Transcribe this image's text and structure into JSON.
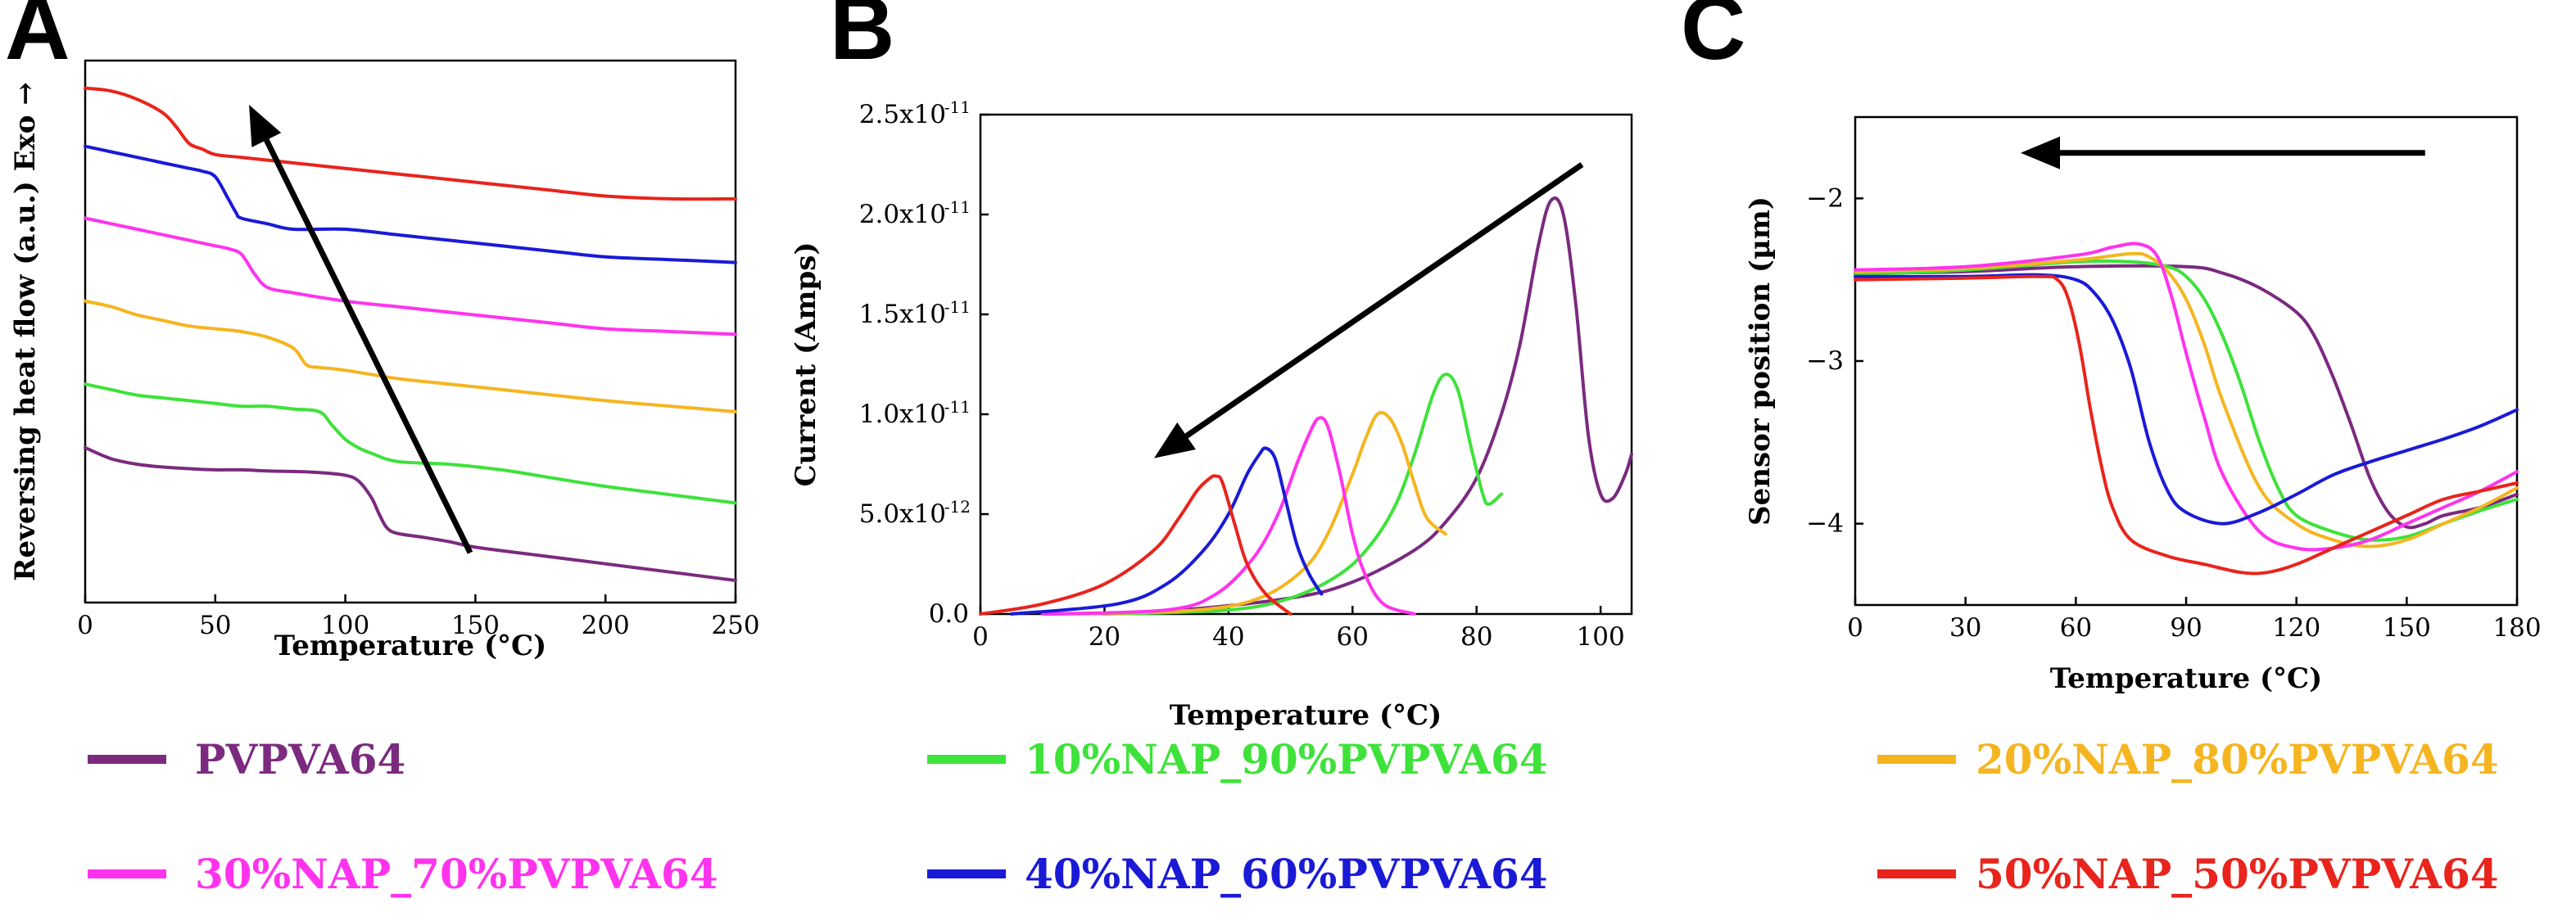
{
  "colors": {
    "purple": "#7b2a7f",
    "green": "#3ee23a",
    "orange": "#f5b520",
    "magenta": "#ff33ee",
    "blue": "#1a1ad6",
    "red": "#e8241c"
  },
  "legend": [
    {
      "label": "PVPVA64",
      "color": "#7b2a7f"
    },
    {
      "label": "10%NAP_90%PVPVA64",
      "color": "#3ee23a"
    },
    {
      "label": "20%NAP_80%PVPVA64",
      "color": "#f5b520"
    },
    {
      "label": "30%NAP_70%PVPVA64",
      "color": "#ff33ee"
    },
    {
      "label": "40%NAP_60%PVPVA64",
      "color": "#1a1ad6"
    },
    {
      "label": "50%NAP_50%PVPVA64",
      "color": "#e8241c"
    }
  ],
  "chart_data": [
    {
      "panel": "A",
      "type": "line",
      "xlabel": "Temperature (°C)",
      "ylabel": "Reversing heat flow (a.u.) Exo →",
      "xlim": [
        0,
        250
      ],
      "ylim": [
        0,
        9.8
      ],
      "xticks": [
        0,
        50,
        100,
        150,
        200,
        250
      ],
      "yticks": [],
      "annotation_arrow": {
        "from": [
          148,
          0.9
        ],
        "to": [
          63,
          9.0
        ]
      },
      "series": [
        {
          "name": "PVPVA64",
          "color": "#7b2a7f",
          "x": [
            0,
            10,
            20,
            30,
            40,
            50,
            60,
            70,
            80,
            90,
            100,
            105,
            110,
            113,
            116,
            120,
            130,
            140,
            150,
            175,
            200,
            225,
            250
          ],
          "y": [
            2.8,
            2.6,
            2.5,
            2.45,
            2.42,
            2.4,
            2.4,
            2.38,
            2.37,
            2.35,
            2.3,
            2.2,
            1.9,
            1.6,
            1.35,
            1.25,
            1.18,
            1.1,
            1.0,
            0.85,
            0.7,
            0.55,
            0.4
          ]
        },
        {
          "name": "10%NAP_90%PVPVA64",
          "color": "#3ee23a",
          "x": [
            0,
            10,
            20,
            30,
            40,
            50,
            60,
            70,
            80,
            90,
            95,
            100,
            105,
            110,
            120,
            140,
            160,
            180,
            200,
            225,
            250
          ],
          "y": [
            3.95,
            3.85,
            3.75,
            3.7,
            3.65,
            3.6,
            3.55,
            3.55,
            3.5,
            3.45,
            3.2,
            2.95,
            2.8,
            2.7,
            2.55,
            2.5,
            2.4,
            2.25,
            2.1,
            1.95,
            1.8
          ]
        },
        {
          "name": "20%NAP_80%PVPVA64",
          "color": "#f5b520",
          "x": [
            0,
            10,
            20,
            30,
            40,
            50,
            60,
            70,
            80,
            85,
            90,
            100,
            120,
            140,
            160,
            180,
            200,
            225,
            250
          ],
          "y": [
            5.45,
            5.35,
            5.2,
            5.1,
            5.0,
            4.95,
            4.9,
            4.8,
            4.6,
            4.3,
            4.25,
            4.2,
            4.05,
            3.95,
            3.85,
            3.75,
            3.65,
            3.55,
            3.45
          ]
        },
        {
          "name": "30%NAP_70%PVPVA64",
          "color": "#ff33ee",
          "x": [
            0,
            10,
            20,
            30,
            40,
            50,
            55,
            60,
            65,
            70,
            80,
            100,
            120,
            140,
            160,
            180,
            200,
            225,
            250
          ],
          "y": [
            6.95,
            6.85,
            6.75,
            6.65,
            6.55,
            6.45,
            6.4,
            6.3,
            5.95,
            5.7,
            5.6,
            5.45,
            5.35,
            5.25,
            5.15,
            5.05,
            4.95,
            4.9,
            4.85
          ]
        },
        {
          "name": "40%NAP_60%PVPVA64",
          "color": "#1a1ad6",
          "x": [
            0,
            10,
            20,
            30,
            40,
            45,
            50,
            55,
            58,
            60,
            70,
            80,
            100,
            120,
            140,
            160,
            180,
            200,
            225,
            250
          ],
          "y": [
            8.25,
            8.15,
            8.05,
            7.95,
            7.85,
            7.8,
            7.7,
            7.3,
            7.05,
            6.95,
            6.85,
            6.75,
            6.75,
            6.65,
            6.55,
            6.45,
            6.35,
            6.25,
            6.2,
            6.15
          ]
        },
        {
          "name": "50%NAP_50%PVPVA64",
          "color": "#e8241c",
          "x": [
            0,
            10,
            20,
            30,
            35,
            40,
            45,
            50,
            60,
            80,
            100,
            120,
            140,
            160,
            180,
            200,
            225,
            250
          ],
          "y": [
            9.3,
            9.25,
            9.1,
            8.85,
            8.6,
            8.3,
            8.2,
            8.1,
            8.05,
            7.95,
            7.85,
            7.75,
            7.65,
            7.55,
            7.45,
            7.35,
            7.3,
            7.3
          ]
        }
      ]
    },
    {
      "panel": "B",
      "type": "line",
      "xlabel": "Temperature (°C)",
      "ylabel": "Current (Amps)",
      "xlim": [
        0,
        105
      ],
      "ylim": [
        0,
        2.5e-11
      ],
      "xticks": [
        0,
        20,
        40,
        60,
        80,
        100
      ],
      "yticks": [
        0.0,
        5e-12,
        1e-11,
        1.5e-11,
        2e-11,
        2.5e-11
      ],
      "ytick_labels": [
        {
          "text": "0.0"
        },
        {
          "text": "5.0x10",
          "exp": "-12"
        },
        {
          "text": "1.0x10",
          "exp": "-11"
        },
        {
          "text": "1.5x10",
          "exp": "-11"
        },
        {
          "text": "2.0x10",
          "exp": "-11"
        },
        {
          "text": "2.5x10",
          "exp": "-11"
        }
      ],
      "annotation_arrow": {
        "from": [
          97,
          2.25e-11
        ],
        "to": [
          28,
          7.8e-12
        ]
      },
      "series": [
        {
          "name": "PVPVA64",
          "color": "#7b2a7f",
          "x": [
            10,
            30,
            50,
            60,
            70,
            75,
            80,
            84,
            87,
            90,
            92,
            94,
            96,
            98,
            100,
            102,
            104,
            105
          ],
          "y": [
            0,
            1.5e-13,
            8e-13,
            1.6e-12,
            3.2e-12,
            4.6e-12,
            6.8e-12,
            1e-11,
            1.35e-11,
            1.85e-11,
            2.07e-11,
            2e-11,
            1.55e-11,
            9e-12,
            6e-12,
            5.8e-12,
            7e-12,
            8e-12
          ]
        },
        {
          "name": "10%NAP_90%PVPVA64",
          "color": "#3ee23a",
          "x": [
            20,
            40,
            50,
            58,
            63,
            67,
            70,
            73,
            75,
            77,
            79,
            81,
            82,
            84
          ],
          "y": [
            0,
            2e-13,
            8e-13,
            2e-12,
            3.5e-12,
            5.5e-12,
            8e-12,
            1.1e-11,
            1.2e-11,
            1.12e-11,
            8.5e-12,
            6e-12,
            5.5e-12,
            6e-12
          ]
        },
        {
          "name": "20%NAP_80%PVPVA64",
          "color": "#f5b520",
          "x": [
            15,
            35,
            45,
            52,
            56,
            60,
            62,
            64,
            66,
            68,
            70,
            72,
            75
          ],
          "y": [
            0,
            2e-13,
            8e-13,
            2.2e-12,
            4e-12,
            7e-12,
            8.7e-12,
            1e-11,
            9.8e-12,
            8.5e-12,
            6.5e-12,
            4.8e-12,
            4e-12
          ]
        },
        {
          "name": "30%NAP_70%PVPVA64",
          "color": "#ff33ee",
          "x": [
            10,
            30,
            38,
            44,
            48,
            51,
            53,
            54.5,
            56,
            58,
            60,
            62,
            65,
            70
          ],
          "y": [
            0,
            2e-13,
            1e-12,
            2.8e-12,
            5e-12,
            7.5e-12,
            9e-12,
            9.8e-12,
            9.4e-12,
            7e-12,
            4e-12,
            2e-12,
            5e-13,
            0
          ]
        },
        {
          "name": "40%NAP_60%PVPVA64",
          "color": "#1a1ad6",
          "x": [
            5,
            22,
            30,
            36,
            40,
            43,
            45,
            46,
            47.5,
            49,
            51,
            53,
            55
          ],
          "y": [
            0,
            5e-13,
            1.5e-12,
            3.2e-12,
            5e-12,
            7e-12,
            8e-12,
            8.3e-12,
            7.8e-12,
            6e-12,
            3.5e-12,
            2e-12,
            1e-12
          ]
        },
        {
          "name": "50%NAP_50%PVPVA64",
          "color": "#e8241c",
          "x": [
            0,
            10,
            20,
            28,
            32,
            35,
            37,
            38,
            39,
            41,
            43,
            46,
            50
          ],
          "y": [
            0,
            5e-13,
            1.5e-12,
            3.2e-12,
            4.8e-12,
            6.2e-12,
            6.8e-12,
            6.9e-12,
            6.6e-12,
            4.5e-12,
            2.5e-12,
            1e-12,
            0
          ]
        }
      ]
    },
    {
      "panel": "C",
      "type": "line",
      "xlabel": "Temperature (°C)",
      "ylabel": "Sensor position (µm)",
      "xlim": [
        0,
        180
      ],
      "ylim": [
        -4.5,
        -1.5
      ],
      "xticks": [
        0,
        30,
        60,
        90,
        120,
        150,
        180
      ],
      "yticks": [
        -4,
        -3,
        -2
      ],
      "ytick_labels": [
        {
          "text": "−4"
        },
        {
          "text": "−3"
        },
        {
          "text": "−2"
        }
      ],
      "annotation_arrow": {
        "from": [
          155,
          -1.72
        ],
        "to": [
          45,
          -1.72
        ]
      },
      "series": [
        {
          "name": "PVPVA64",
          "color": "#7b2a7f",
          "x": [
            0,
            30,
            60,
            90,
            100,
            110,
            120,
            125,
            130,
            135,
            140,
            145,
            150,
            155,
            160,
            170,
            180
          ],
          "y": [
            -2.46,
            -2.45,
            -2.42,
            -2.42,
            -2.46,
            -2.55,
            -2.7,
            -2.85,
            -3.1,
            -3.4,
            -3.72,
            -3.93,
            -4.02,
            -4.0,
            -3.95,
            -3.9,
            -3.82
          ]
        },
        {
          "name": "10%NAP_90%PVPVA64",
          "color": "#3ee23a",
          "x": [
            0,
            30,
            60,
            75,
            85,
            90,
            95,
            100,
            105,
            110,
            115,
            120,
            130,
            140,
            150,
            160,
            170,
            180
          ],
          "y": [
            -2.47,
            -2.44,
            -2.39,
            -2.39,
            -2.42,
            -2.48,
            -2.62,
            -2.85,
            -3.15,
            -3.5,
            -3.78,
            -3.95,
            -4.05,
            -4.1,
            -4.08,
            -4.0,
            -3.92,
            -3.85
          ]
        },
        {
          "name": "20%NAP_80%PVPVA64",
          "color": "#f5b520",
          "x": [
            0,
            30,
            60,
            75,
            80,
            85,
            90,
            95,
            100,
            110,
            120,
            130,
            140,
            150,
            160,
            170,
            180
          ],
          "y": [
            -2.45,
            -2.43,
            -2.38,
            -2.34,
            -2.36,
            -2.45,
            -2.62,
            -2.9,
            -3.25,
            -3.78,
            -4.0,
            -4.1,
            -4.14,
            -4.1,
            -4.0,
            -3.9,
            -3.78
          ]
        },
        {
          "name": "30%NAP_70%PVPVA64",
          "color": "#ff33ee",
          "x": [
            0,
            30,
            60,
            70,
            77,
            82,
            86,
            90,
            95,
            100,
            110,
            120,
            130,
            140,
            150,
            160,
            170,
            180
          ],
          "y": [
            -2.44,
            -2.42,
            -2.35,
            -2.3,
            -2.28,
            -2.35,
            -2.6,
            -2.95,
            -3.35,
            -3.7,
            -4.05,
            -4.15,
            -4.15,
            -4.1,
            -4.0,
            -3.9,
            -3.8,
            -3.68
          ]
        },
        {
          "name": "40%NAP_60%PVPVA64",
          "color": "#1a1ad6",
          "x": [
            0,
            30,
            50,
            60,
            65,
            70,
            75,
            80,
            85,
            90,
            100,
            110,
            120,
            130,
            140,
            150,
            160,
            170,
            180
          ],
          "y": [
            -2.48,
            -2.48,
            -2.47,
            -2.5,
            -2.58,
            -2.75,
            -3.05,
            -3.5,
            -3.8,
            -3.93,
            -4.0,
            -3.93,
            -3.82,
            -3.7,
            -3.62,
            -3.55,
            -3.48,
            -3.4,
            -3.3
          ]
        },
        {
          "name": "50%NAP_50%PVPVA64",
          "color": "#e8241c",
          "x": [
            0,
            30,
            50,
            55,
            58,
            61,
            64,
            67,
            70,
            75,
            85,
            95,
            105,
            112,
            120,
            130,
            140,
            150,
            160,
            170,
            180
          ],
          "y": [
            -2.5,
            -2.49,
            -2.48,
            -2.5,
            -2.62,
            -2.9,
            -3.3,
            -3.65,
            -3.9,
            -4.1,
            -4.2,
            -4.25,
            -4.3,
            -4.3,
            -4.25,
            -4.15,
            -4.05,
            -3.95,
            -3.85,
            -3.8,
            -3.75
          ]
        }
      ]
    }
  ]
}
